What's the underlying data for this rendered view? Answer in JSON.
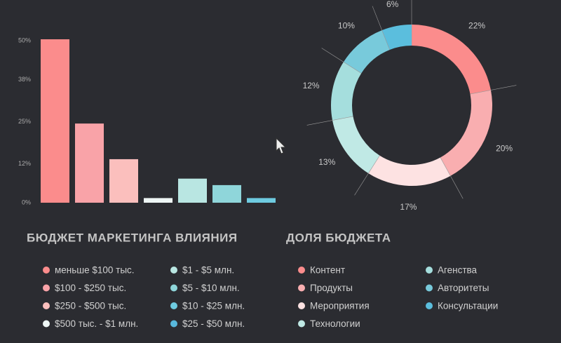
{
  "chart_data": [
    {
      "type": "bar",
      "title": "БЮДЖЕТ МАРКЕТИНГА ВЛИЯНИЯ",
      "categories": [
        "меньше $100 тыс.",
        "$100 - $250 тыс.",
        "$250 - $500 тыс.",
        "$500 тыс. - $1 млн.",
        "$1 - $5 млн.",
        "$5 - $10 млн.",
        "$10 - $25 млн.",
        "$25 - $50 млн."
      ],
      "values": [
        50,
        24,
        13,
        1,
        7,
        5,
        1,
        0
      ],
      "colors": [
        "#fb8c8c",
        "#f9a3a8",
        "#fbbfbd",
        "#eef6f5",
        "#b9e6e2",
        "#8fd6da",
        "#6ecbe0",
        "#58b8dc"
      ],
      "ylim": [
        0,
        50
      ],
      "yticks": [
        {
          "value": 0,
          "label": "0%"
        },
        {
          "value": 12,
          "label": "12%"
        },
        {
          "value": 25,
          "label": "25%"
        },
        {
          "value": 38,
          "label": "38%"
        },
        {
          "value": 50,
          "label": "50%"
        }
      ]
    },
    {
      "type": "donut",
      "title": "ДОЛЯ БЮДЖЕТА",
      "categories": [
        "Контент",
        "Продукты",
        "Мероприятия",
        "Технологии",
        "Агенства",
        "Авторитеты",
        "Консультации"
      ],
      "values": [
        22,
        20,
        17,
        13,
        12,
        10,
        6
      ],
      "value_labels": [
        "22%",
        "20%",
        "17%",
        "13%",
        "12%",
        "10%",
        "6%"
      ],
      "colors": [
        "#fb8c8c",
        "#f9aeb0",
        "#fde2e2",
        "#c0e9e5",
        "#a5dedd",
        "#78cadb",
        "#5bbedd"
      ]
    }
  ]
}
